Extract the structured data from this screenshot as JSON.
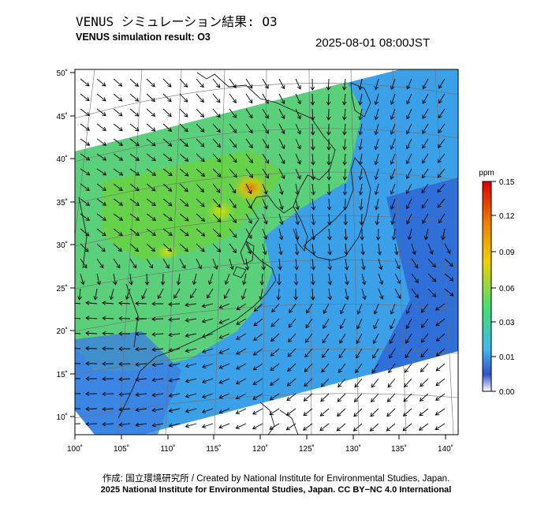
{
  "header": {
    "title_jp": "VENUS シミュレーション結果: O3",
    "title_en": "VENUS simulation result: O3",
    "datetime": "2025-08-01 08:00JST"
  },
  "map": {
    "x_ticks": [
      "100˚",
      "105˚",
      "110˚",
      "115˚",
      "120˚",
      "125˚",
      "130˚",
      "135˚",
      "140˚"
    ],
    "y_ticks": [
      "50˚",
      "45˚",
      "40˚",
      "35˚",
      "30˚",
      "25˚",
      "20˚",
      "15˚",
      "10˚"
    ],
    "lon_range": [
      100,
      142
    ],
    "lat_range": [
      9,
      51
    ]
  },
  "colorbar": {
    "unit": "ppm",
    "tick_labels": [
      "0.15",
      "0.12",
      "0.09",
      "0.06",
      "0.03",
      "0.01",
      "0.00"
    ],
    "colors": [
      "#ffffff",
      "#3050d0",
      "#3fb8f0",
      "#40e070",
      "#f0d000",
      "#f08000",
      "#e00000"
    ]
  },
  "footer": {
    "credit": "作成: 国立環境研究所 / Created by National Institute for Environmental Studies, Japan.",
    "copyright": "2025 National Institute for Environmental Studies, Japan. CC BY−NC 4.0 International"
  }
}
